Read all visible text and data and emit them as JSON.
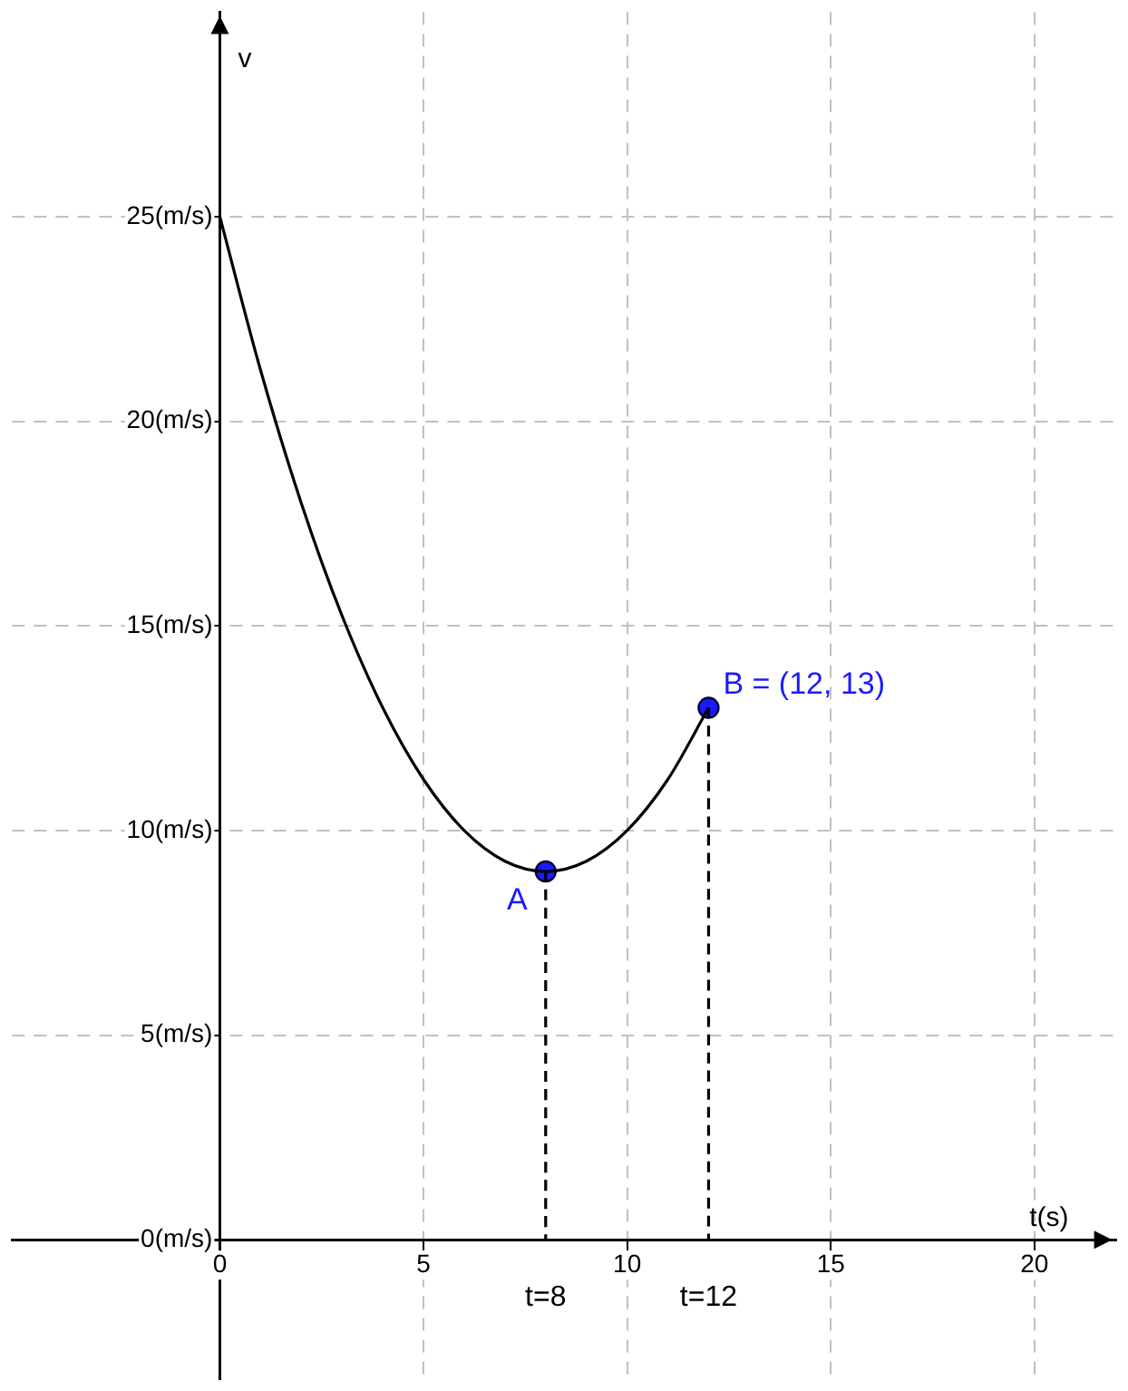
{
  "chart_data": {
    "type": "line",
    "xlabel": "t(s)",
    "ylabel": "v",
    "xlim": [
      -5.1,
      22
    ],
    "ylim": [
      -3.4,
      30
    ],
    "xticks": [
      0,
      5,
      10,
      15,
      20
    ],
    "yticks": [
      {
        "value": 0,
        "label": "0(m/s)"
      },
      {
        "value": 5,
        "label": "5(m/s)"
      },
      {
        "value": 10,
        "label": "10(m/s)"
      },
      {
        "value": 15,
        "label": "15(m/s)"
      },
      {
        "value": 20,
        "label": "20(m/s)"
      },
      {
        "value": 25,
        "label": "25(m/s)"
      }
    ],
    "grid": true,
    "legend": false,
    "series": [
      {
        "type": "line",
        "color": "#000000",
        "marker": "none",
        "line_style": "solid",
        "x": [
          0,
          1,
          2,
          3,
          4,
          5,
          6,
          7,
          8,
          9,
          10,
          11,
          12
        ],
        "values": [
          25,
          21.25,
          18,
          15.25,
          13,
          11.25,
          10,
          9.25,
          9,
          9.25,
          10,
          11.25,
          13
        ]
      },
      {
        "type": "line",
        "color": "#000000",
        "marker": "none",
        "line_style": "dashed",
        "x": [
          8,
          8
        ],
        "values": [
          9,
          0
        ]
      },
      {
        "type": "line",
        "color": "#000000",
        "marker": "none",
        "line_style": "dashed",
        "x": [
          12,
          12
        ],
        "values": [
          13,
          0
        ]
      },
      {
        "type": "scatter",
        "name": "A",
        "color": "#1a1aff",
        "marker": "circle",
        "x": [
          8
        ],
        "values": [
          9
        ]
      },
      {
        "type": "scatter",
        "name": "B = (12, 13)",
        "color": "#1a1aff",
        "marker": "circle",
        "x": [
          12
        ],
        "values": [
          13
        ]
      }
    ],
    "annotations": [
      {
        "text": "t=8",
        "x": 8,
        "y": 0
      },
      {
        "text": "t=12",
        "x": 12,
        "y": 0
      }
    ]
  }
}
